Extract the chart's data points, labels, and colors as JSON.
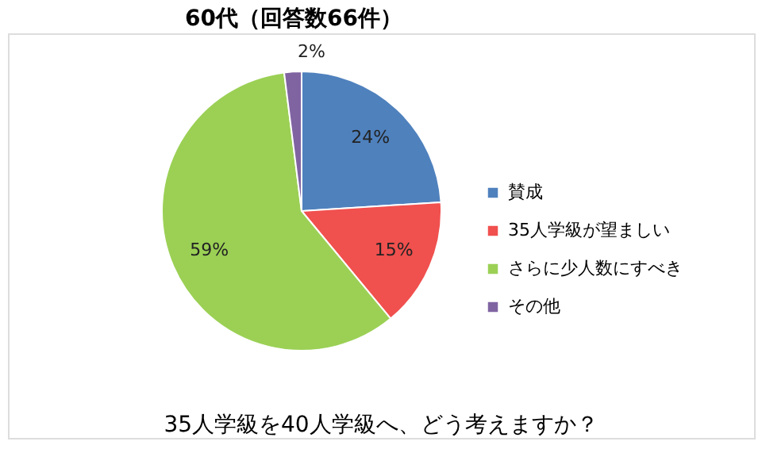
{
  "chart_data": {
    "type": "pie",
    "title": "60代（回答数66件）",
    "categories": [
      "賛成",
      "35人学級が望ましい",
      "さらに少人数にすべき",
      "その他"
    ],
    "values": [
      24,
      15,
      59,
      2
    ],
    "colors": [
      "#4f81bd",
      "#f0504e",
      "#9bd055",
      "#8064a2"
    ],
    "value_labels": [
      "24%",
      "15%",
      "59%",
      "2%"
    ],
    "legend": "right",
    "annotations": [
      "35人学級を40人学級へ、どう考えますか？"
    ]
  }
}
